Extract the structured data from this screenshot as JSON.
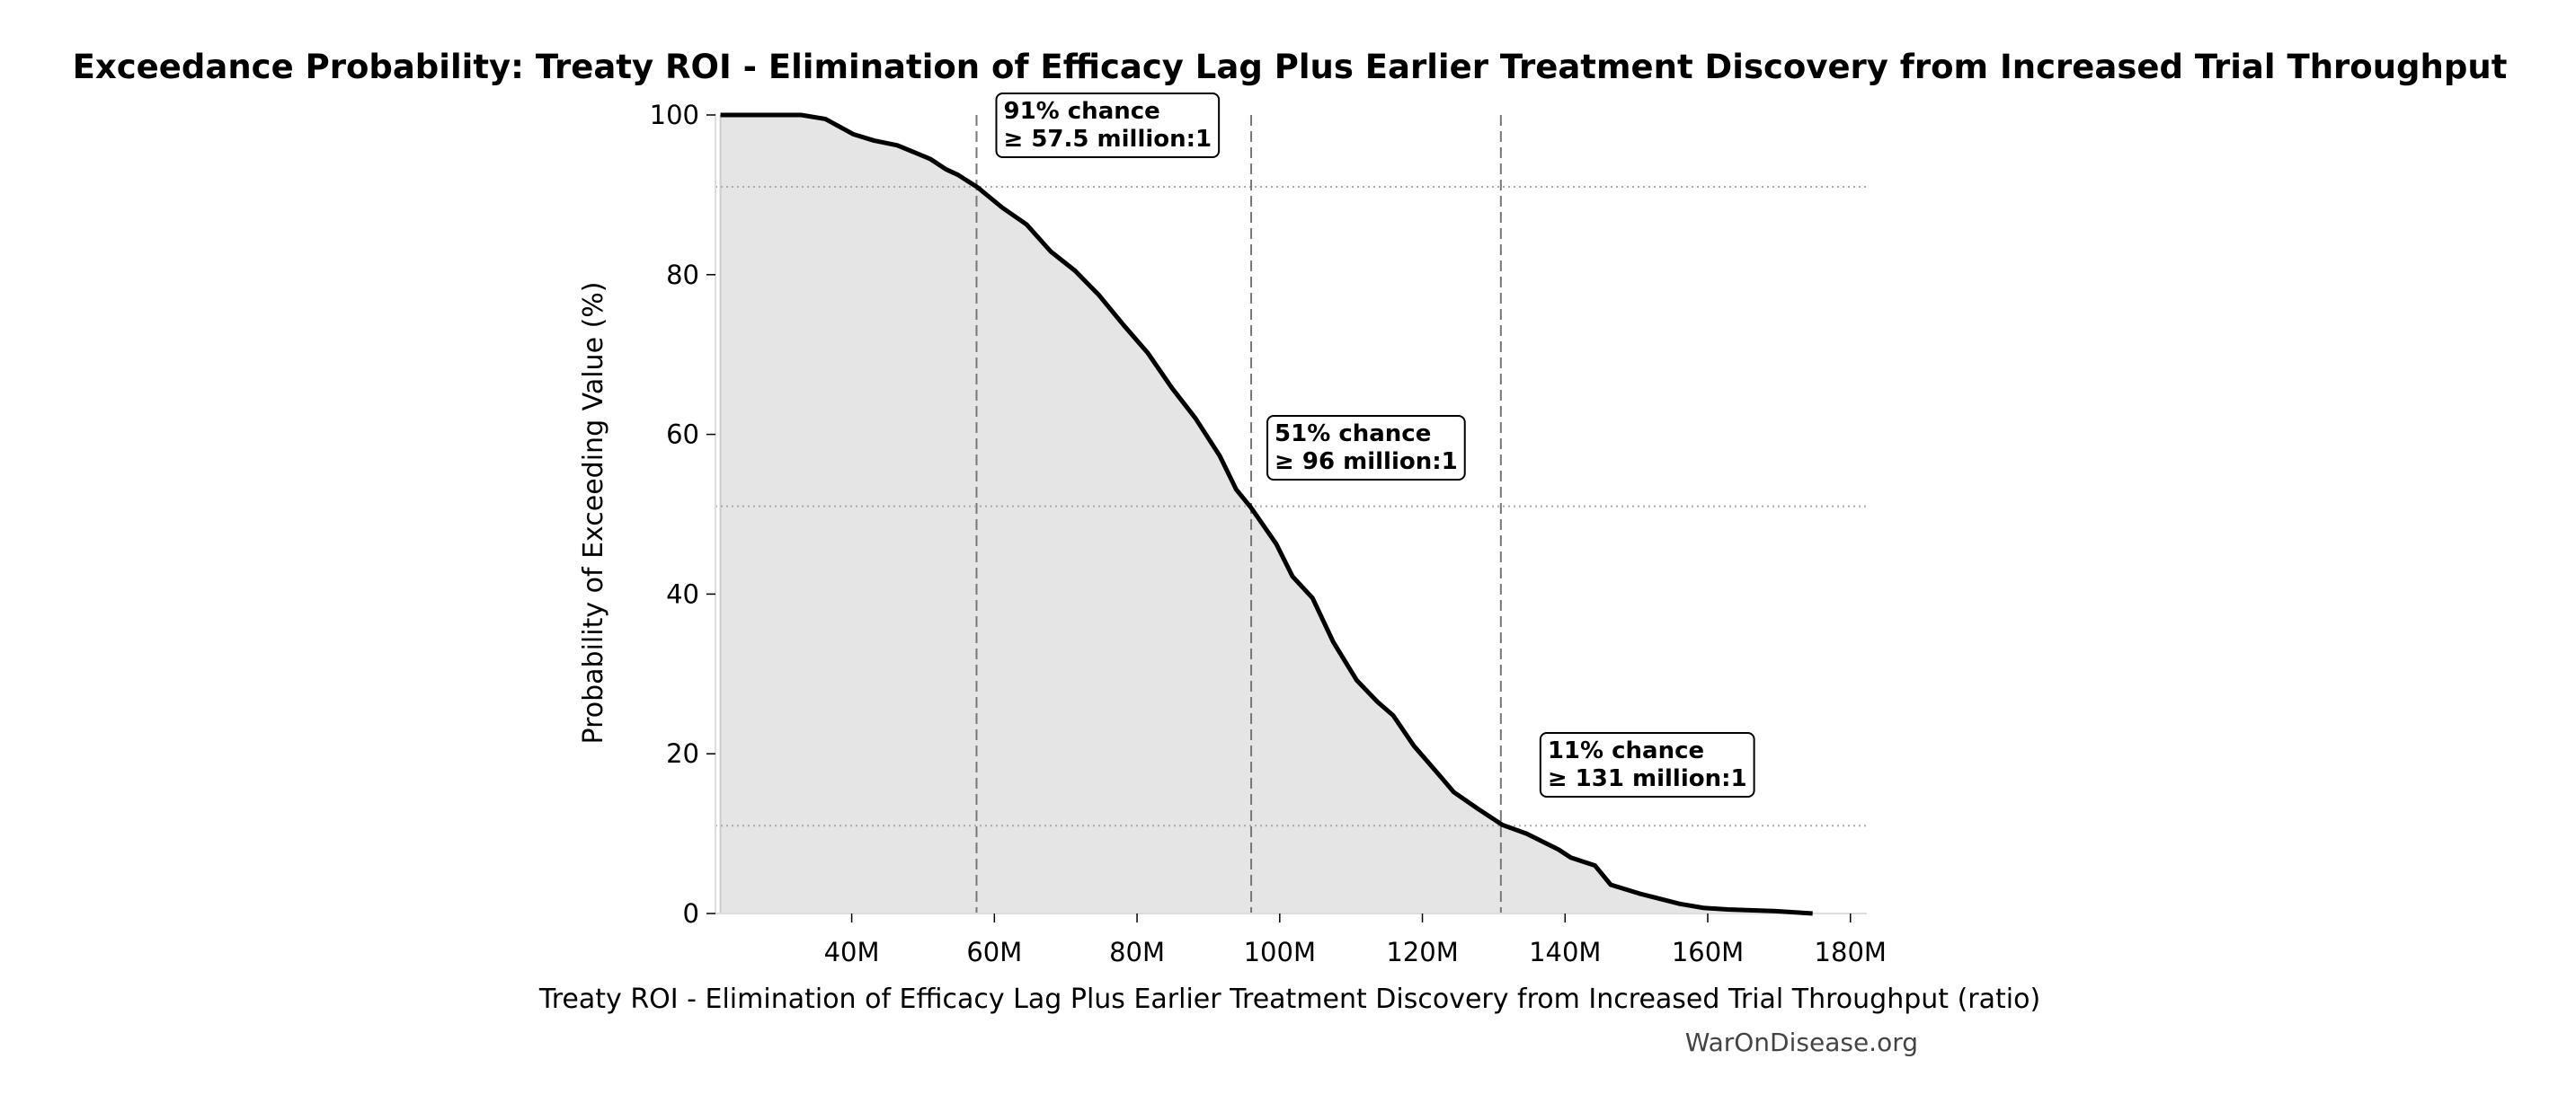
{
  "chart_data": {
    "type": "area",
    "title": "Exceedance Probability: Treaty ROI - Elimination of Efficacy Lag Plus Earlier Treatment Discovery from Increased Trial Throughput",
    "xlabel": "Treaty ROI - Elimination of Efficacy Lag Plus Earlier Treatment Discovery from Increased Trial Throughput (ratio)",
    "ylabel": "Probability of Exceeding Value (%)",
    "xlim": [
      20.9,
      182.3
    ],
    "ylim": [
      0,
      100
    ],
    "x_unit": "million",
    "x_ticks": [
      40,
      60,
      80,
      100,
      120,
      140,
      160,
      180
    ],
    "x_tick_labels": [
      "40M",
      "60M",
      "80M",
      "100M",
      "120M",
      "140M",
      "160M",
      "180M"
    ],
    "y_ticks": [
      0,
      20,
      40,
      60,
      80,
      100
    ],
    "y_tick_labels": [
      "0",
      "20",
      "40",
      "60",
      "80",
      "100"
    ],
    "grid": false,
    "line_color": "#000000",
    "fill_color": "#e5e5e5",
    "x": [
      21.6,
      32.9,
      36.3,
      40.2,
      43.1,
      46.4,
      51.0,
      53.2,
      54.9,
      57.7,
      61.1,
      64.5,
      67.9,
      71.3,
      74.7,
      78.1,
      81.5,
      84.9,
      88.2,
      91.6,
      93.9,
      96.0,
      99.5,
      101.8,
      104.6,
      107.5,
      110.8,
      113.7,
      115.9,
      118.8,
      122.1,
      124.4,
      127.8,
      131.2,
      134.6,
      139.1,
      140.8,
      144.2,
      146.4,
      150.4,
      156.1,
      159.4,
      162.8,
      169.6,
      174.7
    ],
    "y": [
      100,
      100,
      99.5,
      97.6,
      96.8,
      96.2,
      94.5,
      93.2,
      92.5,
      90.9,
      88.4,
      86.3,
      82.9,
      80.5,
      77.4,
      73.7,
      70.2,
      65.8,
      62.0,
      57.3,
      53.1,
      50.8,
      46.3,
      42.2,
      39.5,
      34.0,
      29.2,
      26.5,
      24.8,
      21.0,
      17.6,
      15.2,
      13.1,
      11.1,
      10.0,
      8.0,
      7.0,
      6.0,
      3.6,
      2.5,
      1.2,
      0.7,
      0.5,
      0.3,
      0
    ],
    "annotations": [
      {
        "x": 57.5,
        "y": 91,
        "line1": "91% chance",
        "line2": "≥ 57.5 million:1"
      },
      {
        "x": 96,
        "y": 51,
        "line1": "51% chance",
        "line2": "≥ 96 million:1"
      },
      {
        "x": 131,
        "y": 11,
        "line1": "11% chance",
        "line2": "≥ 131 million:1"
      }
    ]
  },
  "watermark": "WarOnDisease.org"
}
